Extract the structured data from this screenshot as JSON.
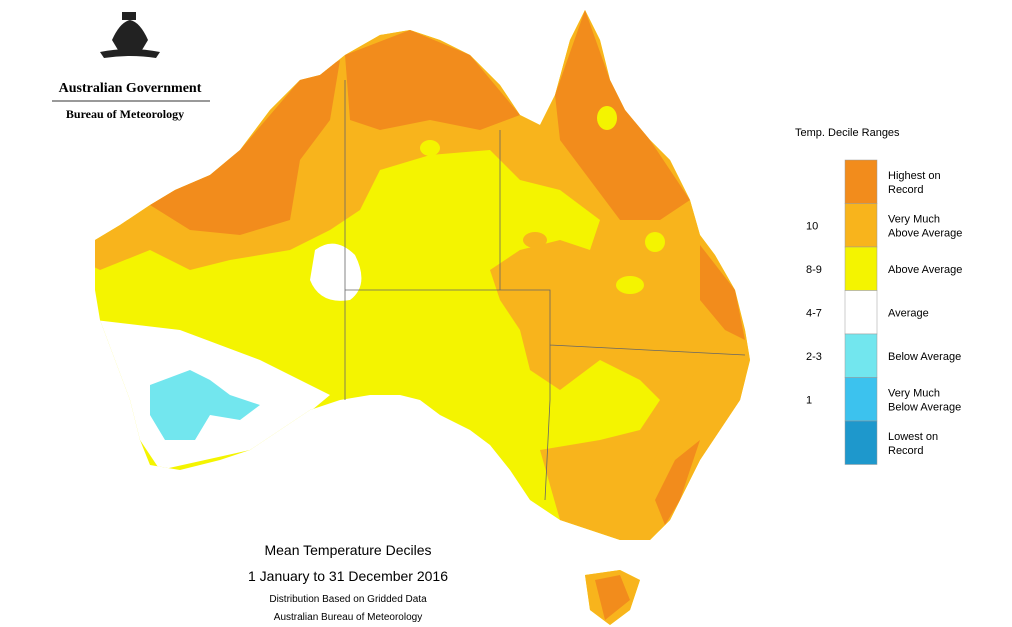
{
  "header": {
    "title": "Australian Government",
    "subtitle": "Bureau of Meteorology"
  },
  "legend": {
    "title": "Temp. Decile Ranges",
    "items": [
      {
        "lines": [
          "Highest on",
          "Record"
        ],
        "color": "#f28c1c"
      },
      {
        "lines": [
          "Very Much",
          "Above Average"
        ],
        "decile": "10",
        "color": "#f8b41c"
      },
      {
        "lines": [
          "Above Average"
        ],
        "decile": "8-9",
        "color": "#f4f400"
      },
      {
        "lines": [
          "Average"
        ],
        "decile": "4-7",
        "color": "#ffffff"
      },
      {
        "lines": [
          "Below Average"
        ],
        "decile": "2-3",
        "color": "#72e6ee"
      },
      {
        "lines": [
          "Very Much",
          "Below Average"
        ],
        "decile": "1",
        "color": "#3cc2ee"
      },
      {
        "lines": [
          "Lowest on",
          "Record"
        ],
        "color": "#1e98cc"
      }
    ]
  },
  "caption": {
    "title": "Mean Temperature Deciles",
    "period": "1 January to 31 December 2016",
    "note": "Distribution Based on Gridded Data",
    "source": "Australian Bureau of Meteorology"
  }
}
